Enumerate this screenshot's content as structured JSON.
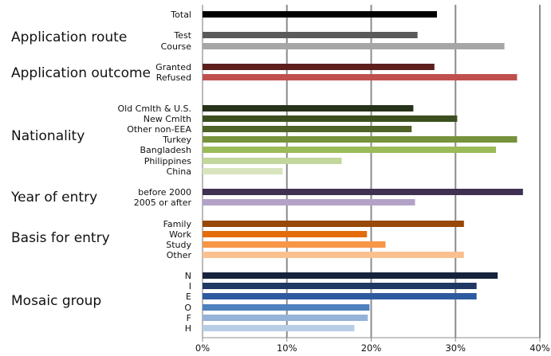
{
  "chart_data": {
    "type": "bar",
    "orientation": "horizontal",
    "xlim": [
      0,
      40
    ],
    "x_ticks": [
      "0%",
      "10%",
      "20%",
      "30%",
      "40%"
    ],
    "grid": "vertical",
    "groups": [
      {
        "label": "",
        "bars": [
          {
            "label": "Total",
            "value": 27.8,
            "color": "#000000"
          }
        ]
      },
      {
        "label": "Application route",
        "bars": [
          {
            "label": "Test",
            "value": 25.5,
            "color": "#5a5a5a"
          },
          {
            "label": "Course",
            "value": 35.8,
            "color": "#a6a6a6"
          }
        ]
      },
      {
        "label": "Application outcome",
        "bars": [
          {
            "label": "Granted",
            "value": 27.5,
            "color": "#5c1f1d"
          },
          {
            "label": "Refused",
            "value": 37.3,
            "color": "#c0504d"
          }
        ]
      },
      {
        "label": "Nationality",
        "bars": [
          {
            "label": "Old Cmlth & U.S.",
            "value": 25.0,
            "color": "#26321a"
          },
          {
            "label": "New Cmlth",
            "value": 30.2,
            "color": "#3c4f20"
          },
          {
            "label": "Other non-EEA",
            "value": 24.8,
            "color": "#4f6228"
          },
          {
            "label": "Turkey",
            "value": 37.3,
            "color": "#76923c"
          },
          {
            "label": "Bangladesh",
            "value": 34.8,
            "color": "#9bbb59"
          },
          {
            "label": "Philippines",
            "value": 16.5,
            "color": "#c3d69b"
          },
          {
            "label": "China",
            "value": 9.5,
            "color": "#d7e4bd"
          }
        ]
      },
      {
        "label": "Year of entry",
        "bars": [
          {
            "label": "before 2000",
            "value": 38.0,
            "color": "#3f3151"
          },
          {
            "label": "2005 or after",
            "value": 25.2,
            "color": "#b3a2c7"
          }
        ]
      },
      {
        "label": "Basis for entry",
        "bars": [
          {
            "label": "Family",
            "value": 31.0,
            "color": "#984807"
          },
          {
            "label": "Work",
            "value": 19.5,
            "color": "#e46c0a"
          },
          {
            "label": "Study",
            "value": 21.7,
            "color": "#f79646"
          },
          {
            "label": "Other",
            "value": 31.0,
            "color": "#fac090"
          }
        ]
      },
      {
        "label": "Mosaic group",
        "bars": [
          {
            "label": "N",
            "value": 35.0,
            "color": "#17233d"
          },
          {
            "label": "I",
            "value": 32.5,
            "color": "#1f3864"
          },
          {
            "label": "E",
            "value": 32.5,
            "color": "#2e5aa0"
          },
          {
            "label": "O",
            "value": 19.8,
            "color": "#4f81bd"
          },
          {
            "label": "F",
            "value": 19.6,
            "color": "#95b3d7"
          },
          {
            "label": "H",
            "value": 18.0,
            "color": "#b9cde5"
          }
        ]
      }
    ]
  }
}
